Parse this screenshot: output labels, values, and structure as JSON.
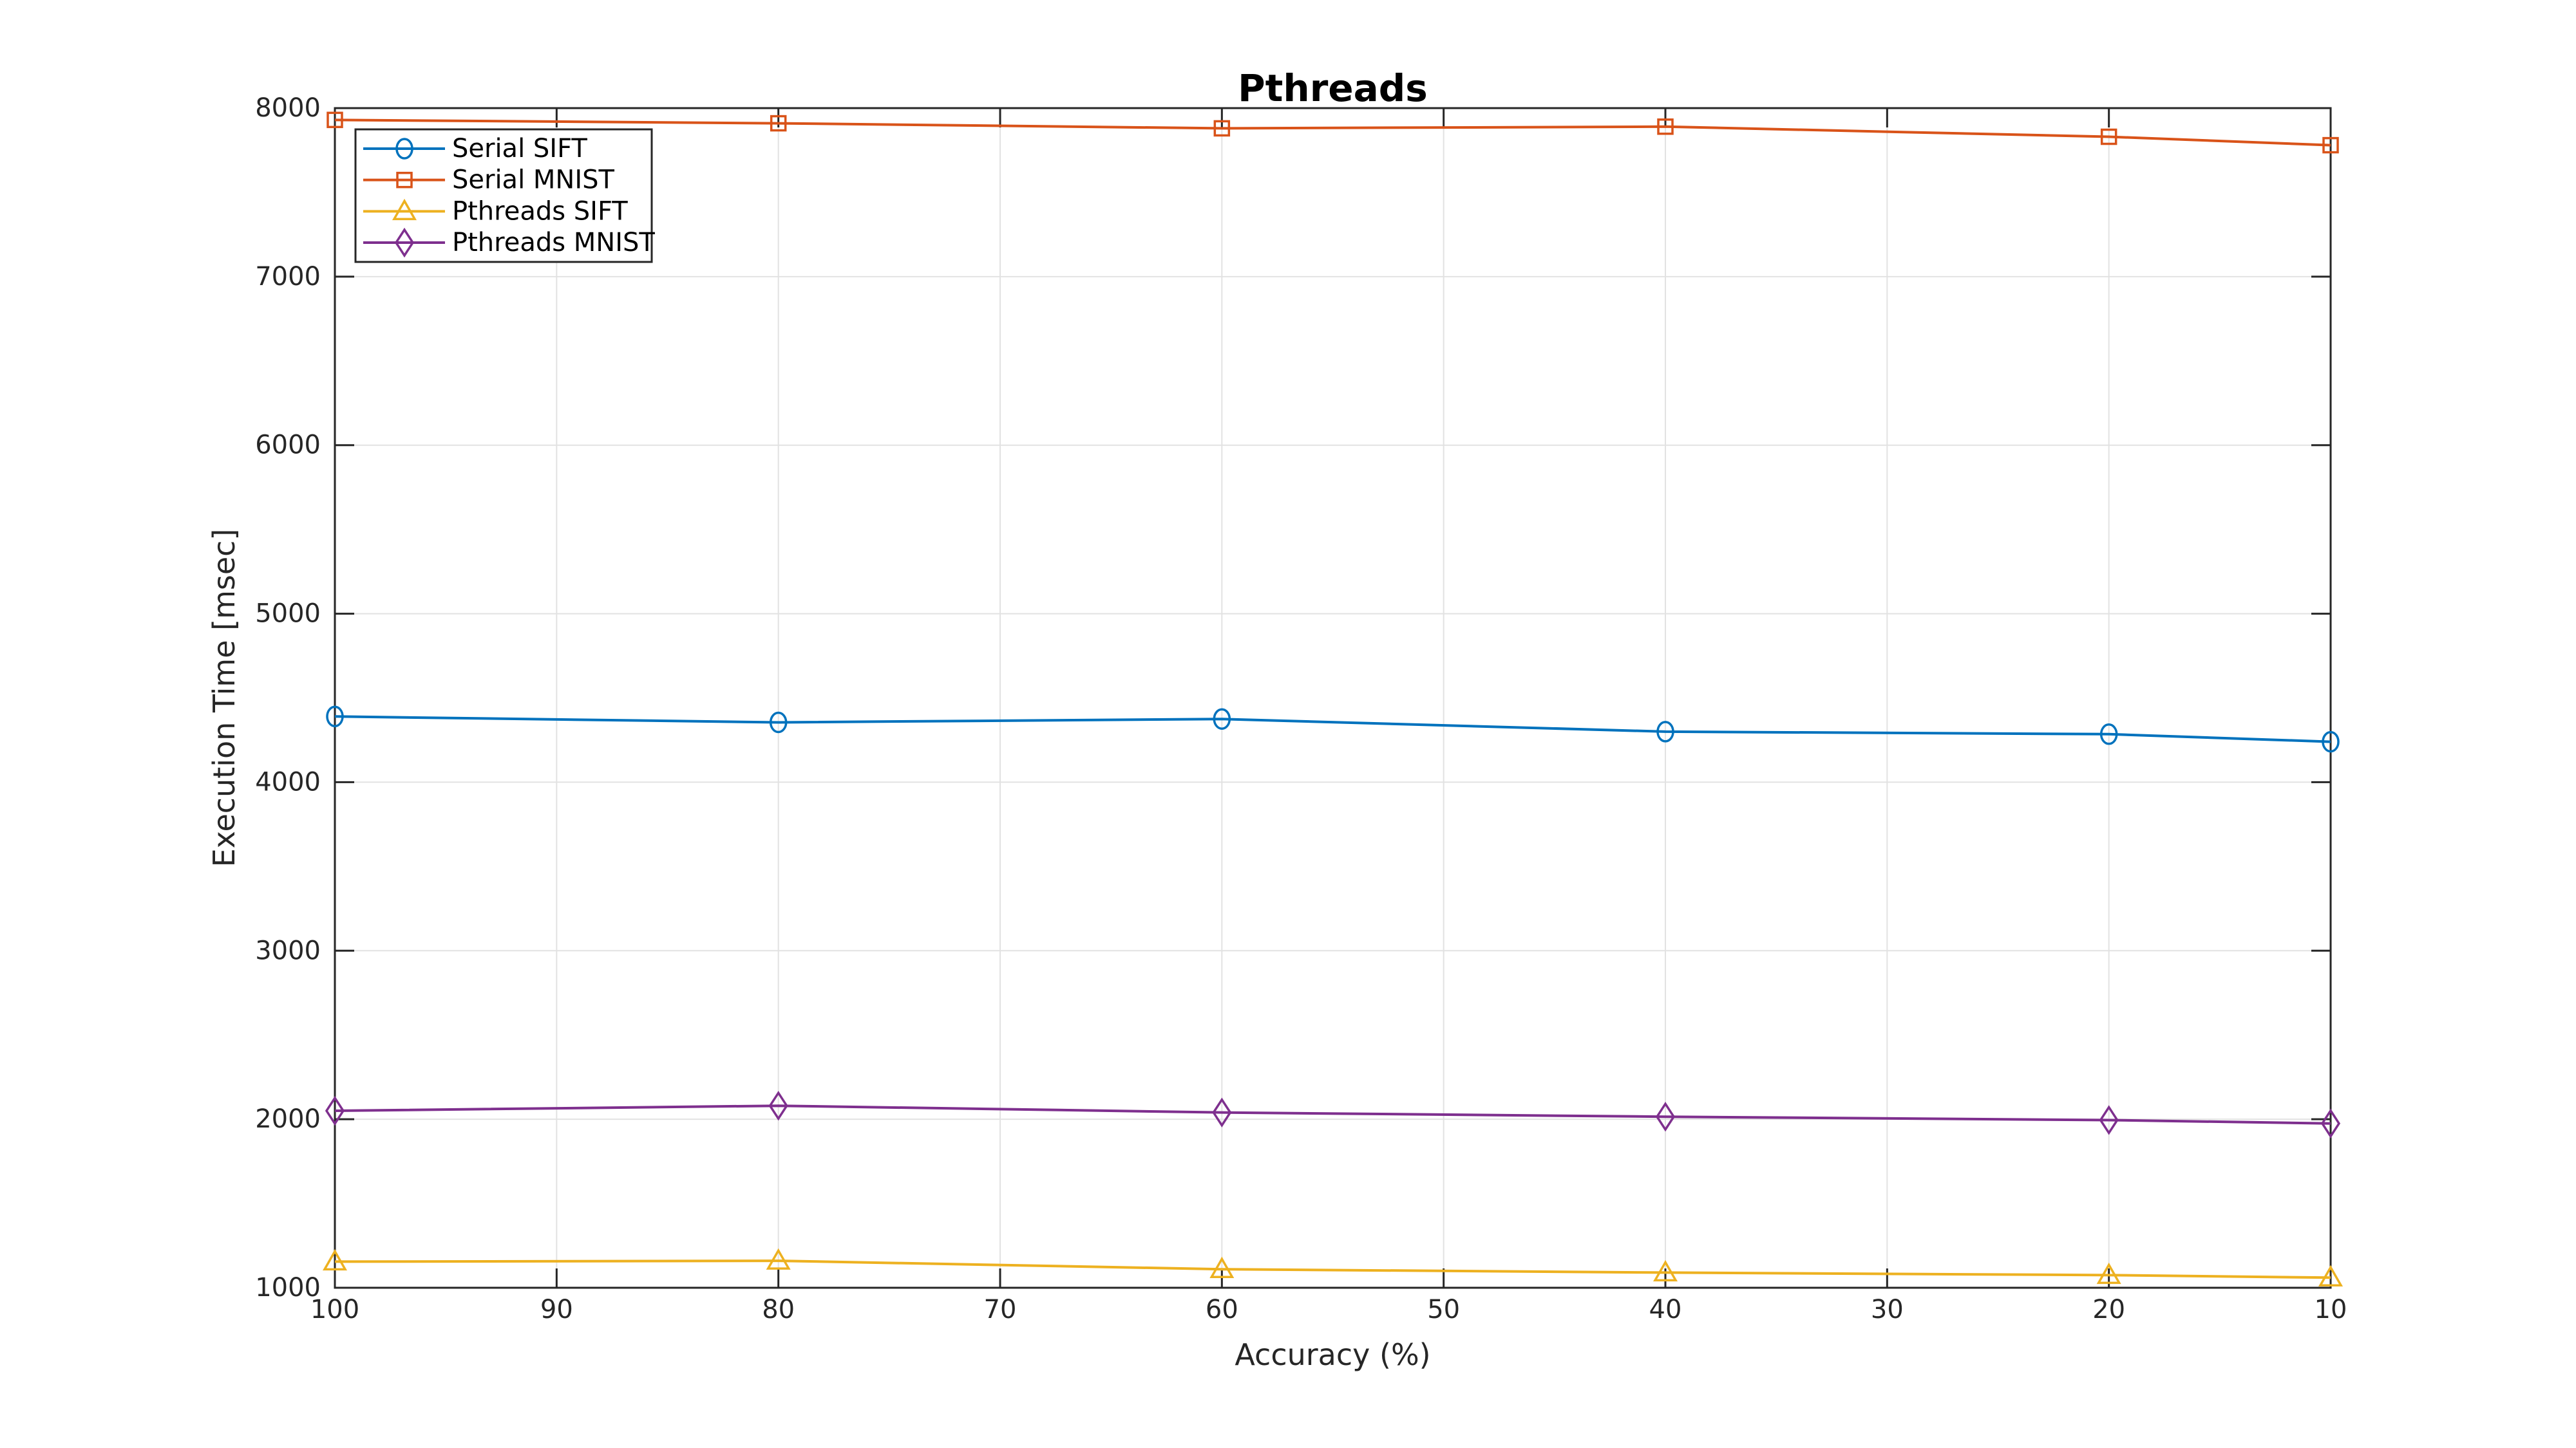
{
  "chart_data": {
    "type": "line",
    "title": "Pthreads",
    "xlabel": "Accuracy (%)",
    "ylabel": "Execution Time [msec]",
    "grid": true,
    "legend_position": "top-left-inside",
    "x_axis": {
      "min": 10,
      "max": 100,
      "reversed": true,
      "ticks": [
        100,
        90,
        80,
        70,
        60,
        50,
        40,
        30,
        20,
        10
      ]
    },
    "y_axis": {
      "min": 1000,
      "max": 8000,
      "ticks": [
        1000,
        2000,
        3000,
        4000,
        5000,
        6000,
        7000,
        8000
      ]
    },
    "x": [
      100,
      80,
      60,
      40,
      20,
      10
    ],
    "series": [
      {
        "name": "Serial SIFT",
        "color": "#0072BD",
        "marker": "circle",
        "values": [
          4390,
          4355,
          4375,
          4300,
          4285,
          4240
        ]
      },
      {
        "name": "Serial MNIST",
        "color": "#D95319",
        "marker": "square",
        "values": [
          7930,
          7910,
          7880,
          7890,
          7830,
          7780
        ]
      },
      {
        "name": "Pthreads SIFT",
        "color": "#EDB120",
        "marker": "triangle",
        "values": [
          1155,
          1160,
          1110,
          1090,
          1075,
          1060
        ]
      },
      {
        "name": "Pthreads MNIST",
        "color": "#7E2F8E",
        "marker": "diamond",
        "values": [
          2050,
          2080,
          2040,
          2015,
          1995,
          1975
        ]
      }
    ],
    "style": {
      "axis_color": "#262626",
      "grid_color": "#e2e2e2",
      "text_color": "#262626",
      "title_color": "#000000",
      "background": "#ffffff"
    }
  }
}
